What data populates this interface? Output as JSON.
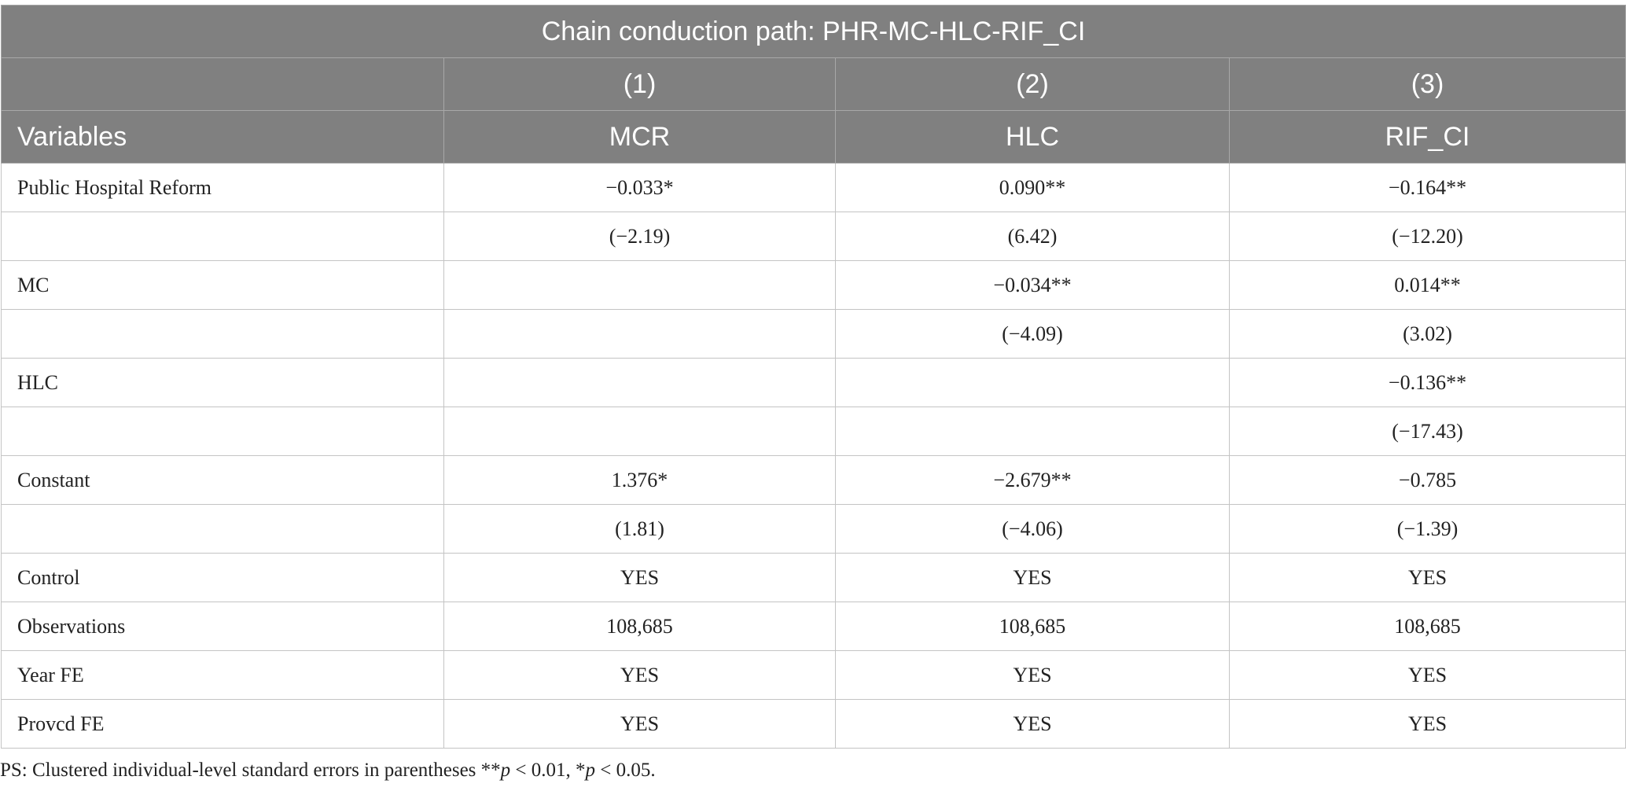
{
  "table": {
    "title": "Chain conduction path: PHR-MC-HLC-RIF_CI",
    "header_rows": [
      [
        null,
        "(1)",
        "(2)",
        "(3)"
      ],
      [
        "Variables",
        "MCR",
        "HLC",
        "RIF_CI"
      ]
    ],
    "rows": [
      [
        "Public Hospital Reform",
        "−0.033*",
        "0.090**",
        "−0.164**"
      ],
      [
        null,
        "(−2.19)",
        "(6.42)",
        "(−12.20)"
      ],
      [
        "MC",
        null,
        "−0.034**",
        "0.014**"
      ],
      [
        null,
        null,
        "(−4.09)",
        "(3.02)"
      ],
      [
        "HLC",
        null,
        null,
        "−0.136**"
      ],
      [
        null,
        null,
        null,
        "(−17.43)"
      ],
      [
        "Constant",
        "1.376*",
        "−2.679**",
        "−0.785"
      ],
      [
        null,
        "(1.81)",
        "(−4.06)",
        "(−1.39)"
      ],
      [
        "Control",
        "YES",
        "YES",
        "YES"
      ],
      [
        "Observations",
        "108,685",
        "108,685",
        "108,685"
      ],
      [
        "Year FE",
        "YES",
        "YES",
        "YES"
      ],
      [
        "Provcd FE",
        "YES",
        "YES",
        "YES"
      ]
    ]
  },
  "footnote": [
    "PS: Clustered individual-level standard errors in parentheses **",
    "p",
    " < 0.01, *",
    "p",
    " < 0.05."
  ]
}
